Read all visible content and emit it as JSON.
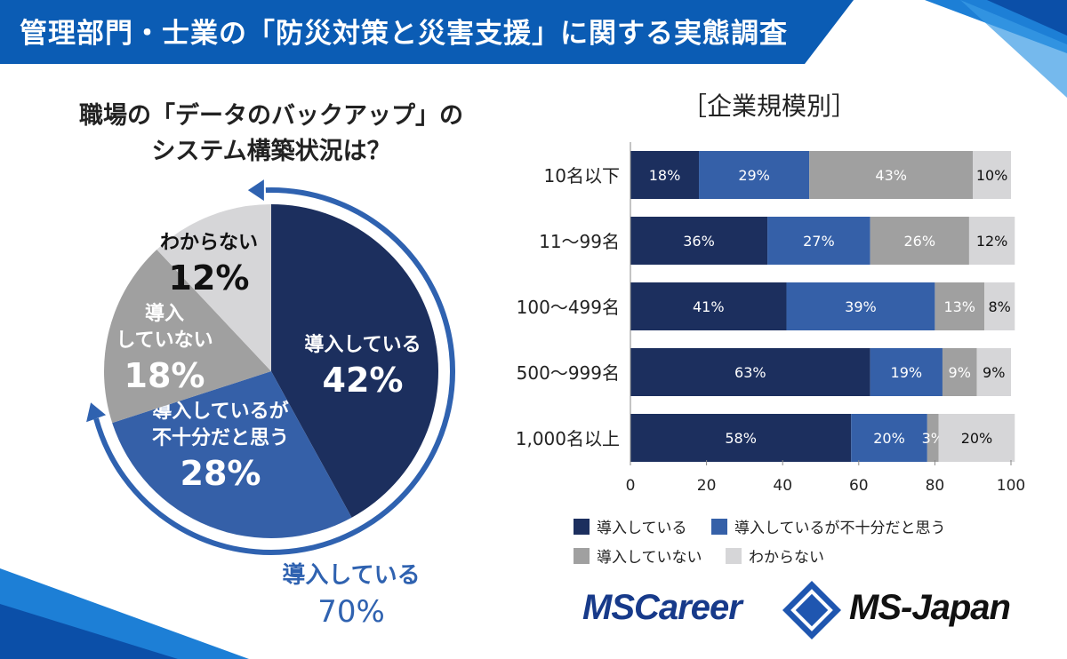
{
  "header": {
    "title": "管理部門・士業の「防災対策と災害支援」に関する実態調査"
  },
  "colors": {
    "banner": "#0b5cb4",
    "dark": "#1c2f5e",
    "blue": "#3560a8",
    "gray": "#a0a0a0",
    "light": "#d6d6d8",
    "arrow": "#2f62b0"
  },
  "chart_data": [
    {
      "type": "pie",
      "title_lines": [
        "職場の「データのバックアップ」の",
        "システム構築状況は？"
      ],
      "slices": [
        {
          "label_lines": [
            "導入している"
          ],
          "value": 42,
          "value_label": "42%",
          "color": "#1c2f5e",
          "text_color": "#ffffff"
        },
        {
          "label_lines": [
            "導入しているが",
            "不十分だと思う"
          ],
          "value": 28,
          "value_label": "28%",
          "color": "#3560a8",
          "text_color": "#ffffff"
        },
        {
          "label_lines": [
            "導入",
            "していない"
          ],
          "value": 18,
          "value_label": "18%",
          "color": "#a0a0a0",
          "text_color": "#ffffff"
        },
        {
          "label_lines": [
            "わからない"
          ],
          "value": 12,
          "value_label": "12%",
          "color": "#d6d6d8",
          "text_color": "#111111"
        }
      ],
      "annotation": {
        "label": "導入している",
        "value": 70,
        "value_label": "70%"
      }
    },
    {
      "type": "bar",
      "stacked": true,
      "orientation": "horizontal",
      "title": "［企業規模別］",
      "categories": [
        "10名以下",
        "11～99名",
        "100～499名",
        "500～999名",
        "1,000名以上"
      ],
      "series": [
        {
          "name": "導入している",
          "color": "#1c2f5e",
          "values": [
            18,
            36,
            41,
            63,
            58
          ]
        },
        {
          "name": "導入しているが不十分だと思う",
          "color": "#3560a8",
          "values": [
            29,
            27,
            39,
            19,
            20
          ]
        },
        {
          "name": "導入していない",
          "color": "#a0a0a0",
          "values": [
            43,
            26,
            13,
            9,
            3
          ]
        },
        {
          "name": "わからない",
          "color": "#d6d6d8",
          "values": [
            10,
            12,
            8,
            9,
            20
          ]
        }
      ],
      "xlim": [
        0,
        100
      ],
      "xticks": [
        "0",
        "20",
        "40",
        "60",
        "80",
        "100"
      ],
      "legend": "bottom"
    }
  ],
  "logos": {
    "left": "MSCareer",
    "right": "MS-Japan"
  }
}
